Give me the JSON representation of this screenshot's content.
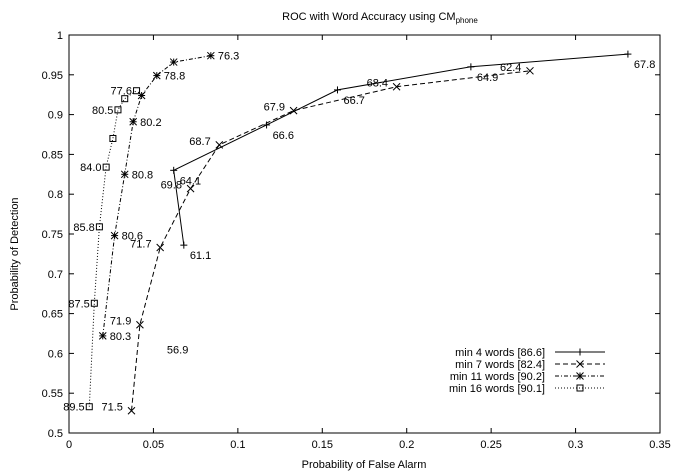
{
  "chart_data": {
    "type": "line",
    "title": "ROC with Word Accuracy using CM",
    "title_subscript": "phone",
    "xlabel": "Probability of False Alarm",
    "ylabel": "Probability of Detection",
    "xlim": [
      0,
      0.35
    ],
    "ylim": [
      0.5,
      1
    ],
    "xticks": [
      "0",
      "0.05",
      "0.1",
      "0.15",
      "0.2",
      "0.25",
      "0.3",
      "0.35"
    ],
    "yticks": [
      "0.5",
      "0.55",
      "0.6",
      "0.65",
      "0.7",
      "0.75",
      "0.8",
      "0.85",
      "0.9",
      "0.95",
      "1"
    ],
    "grid": false,
    "legend_position": "bottom-right",
    "series": [
      {
        "name": "min 4 words [86.6]",
        "marker": "plus",
        "dash": "solid",
        "points": [
          {
            "x": 0.068,
            "y": 0.736,
            "label": "61.1"
          },
          {
            "x": 0.062,
            "y": 0.83,
            "label": "64.1"
          },
          {
            "x": 0.117,
            "y": 0.887,
            "label": "66.6"
          },
          {
            "x": 0.159,
            "y": 0.931,
            "label": "66.7"
          },
          {
            "x": 0.238,
            "y": 0.96,
            "label": "64.9"
          },
          {
            "x": 0.331,
            "y": 0.976,
            "label": "67.8"
          }
        ]
      },
      {
        "name": "min 7 words [82.4]",
        "marker": "cross",
        "dash": "dashed",
        "points": [
          {
            "x": 0.037,
            "y": 0.528,
            "label": "71.5"
          },
          {
            "x": 0.042,
            "y": 0.636,
            "label": "71.9"
          },
          {
            "x": 0.054,
            "y": 0.733,
            "label": "71.7"
          },
          {
            "x": 0.072,
            "y": 0.807,
            "label": "69.8"
          },
          {
            "x": 0.089,
            "y": 0.862,
            "label": "68.7"
          },
          {
            "x": 0.133,
            "y": 0.905,
            "label": "67.9"
          },
          {
            "x": 0.194,
            "y": 0.935,
            "label": "68.4"
          },
          {
            "x": 0.273,
            "y": 0.955,
            "label": "62.4"
          }
        ]
      },
      {
        "name": "min 11 words [90.2]",
        "marker": "star",
        "dash": "dash-dot",
        "points": [
          {
            "x": 0.02,
            "y": 0.622,
            "label": "80.3"
          },
          {
            "x": 0.027,
            "y": 0.748,
            "label": "80.6"
          },
          {
            "x": 0.033,
            "y": 0.825,
            "label": "80.8"
          },
          {
            "x": 0.038,
            "y": 0.891,
            "label": "80.2"
          },
          {
            "x": 0.043,
            "y": 0.924,
            "label": ""
          },
          {
            "x": 0.052,
            "y": 0.949,
            "label": "78.8"
          },
          {
            "x": 0.062,
            "y": 0.966,
            "label": ""
          },
          {
            "x": 0.084,
            "y": 0.974,
            "label": "76.3"
          }
        ]
      },
      {
        "name": "min 16 words [90.1]",
        "marker": "square",
        "dash": "dotted",
        "points": [
          {
            "x": 0.012,
            "y": 0.533,
            "label": "89.5"
          },
          {
            "x": 0.015,
            "y": 0.663,
            "label": "87.5"
          },
          {
            "x": 0.018,
            "y": 0.759,
            "label": "85.8"
          },
          {
            "x": 0.022,
            "y": 0.834,
            "label": "84.0"
          },
          {
            "x": 0.026,
            "y": 0.87,
            "label": ""
          },
          {
            "x": 0.029,
            "y": 0.906,
            "label": "80.5"
          },
          {
            "x": 0.033,
            "y": 0.92,
            "label": ""
          },
          {
            "x": 0.04,
            "y": 0.93,
            "label": "77.6"
          }
        ]
      }
    ],
    "annotations": [
      {
        "x": 0.058,
        "y": 0.6,
        "text": "56.9"
      }
    ]
  }
}
